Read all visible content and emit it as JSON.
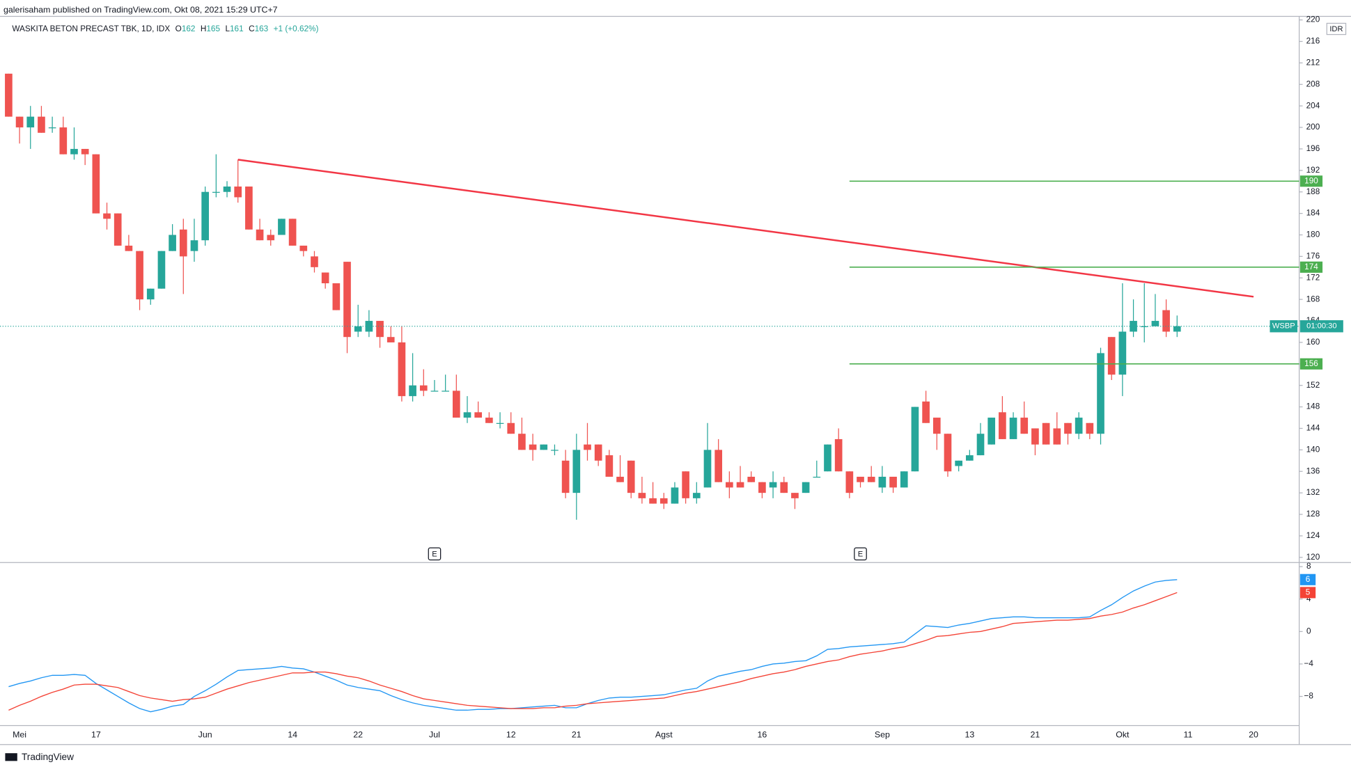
{
  "header": {
    "published": "galerisaham published on TradingView.com, Okt 08, 2021 15:29 UTC+7"
  },
  "footer": {
    "brand": "TradingView"
  },
  "chart_data": [
    {
      "type": "candlestick",
      "title": "WASKITA BETON PRECAST TBK, 1D, IDX",
      "ohlc": [
        {
          "key": "O",
          "value": 162
        },
        {
          "key": "H",
          "value": 165
        },
        {
          "key": "L",
          "value": 161
        },
        {
          "key": "C",
          "value": 163
        }
      ],
      "change": "+1 (+0.62%)",
      "currency": "IDR",
      "categories": [
        null,
        "Mei",
        null,
        null,
        null,
        null,
        null,
        null,
        "17",
        null,
        null,
        null,
        null,
        null,
        null,
        null,
        null,
        null,
        "Jun",
        null,
        null,
        null,
        null,
        null,
        null,
        null,
        "14",
        null,
        null,
        null,
        null,
        null,
        "22",
        null,
        null,
        null,
        null,
        null,
        null,
        "Jul",
        null,
        null,
        null,
        null,
        null,
        null,
        "12",
        null,
        null,
        null,
        null,
        null,
        "21",
        null,
        null,
        null,
        null,
        null,
        null,
        null,
        "Agst",
        null,
        null,
        null,
        null,
        null,
        null,
        null,
        null,
        "16",
        null,
        null,
        null,
        null,
        null,
        null,
        null,
        null,
        null,
        null,
        "Sep",
        null,
        null,
        null,
        null,
        null,
        null,
        null,
        "13",
        null,
        null,
        null,
        null,
        null,
        "21",
        null,
        null,
        null,
        null,
        null,
        null,
        null,
        "Okt",
        null,
        null,
        null,
        null,
        null,
        "11",
        null,
        null,
        null,
        null,
        null,
        "20",
        null,
        null,
        null,
        null
      ],
      "open": [
        210,
        202,
        200,
        202,
        200,
        200,
        195,
        196,
        195,
        184,
        184,
        178,
        177,
        168,
        170,
        177,
        181,
        177,
        179,
        188,
        188,
        189,
        189,
        181,
        180,
        180,
        183,
        178,
        176,
        173,
        171,
        175,
        162,
        162,
        164,
        161,
        160,
        150,
        152,
        151,
        151,
        151,
        146,
        147,
        146,
        145,
        145,
        143,
        141,
        140,
        140,
        138,
        132,
        141,
        141,
        139,
        135,
        138,
        132,
        131,
        131,
        130,
        136,
        131,
        133,
        140,
        134,
        134,
        135,
        134,
        133,
        134,
        132,
        132,
        135,
        136,
        142,
        136,
        135,
        135,
        133,
        135,
        133,
        136,
        149,
        146,
        143,
        137,
        138,
        139,
        141,
        147,
        142,
        146,
        144,
        145,
        144,
        145,
        143,
        145,
        143,
        161,
        154,
        162,
        163,
        163,
        166,
        162,
        null,
        null,
        null,
        null,
        null,
        null,
        null,
        null,
        null,
        null,
        null
      ],
      "high": [
        210,
        202,
        204,
        204,
        202,
        202,
        200,
        196,
        195,
        186,
        184,
        180,
        177,
        170,
        177,
        182,
        183,
        183,
        189,
        195,
        190,
        194,
        189,
        183,
        181,
        183,
        183,
        178,
        177,
        173,
        171,
        175,
        167,
        166,
        164,
        163,
        163,
        158,
        155,
        153,
        154,
        154,
        150,
        149,
        147,
        147,
        147,
        146,
        143,
        141,
        141,
        140,
        143,
        145,
        141,
        140,
        139,
        138,
        135,
        134,
        132,
        134,
        136,
        134,
        145,
        142,
        136,
        137,
        136,
        134,
        136,
        135,
        132,
        134,
        138,
        141,
        144,
        136,
        135,
        137,
        137,
        135,
        136,
        148,
        151,
        146,
        143,
        138,
        140,
        145,
        146,
        150,
        147,
        149,
        144,
        145,
        147,
        145,
        147,
        145,
        159,
        161,
        171,
        168,
        171,
        169,
        168,
        165,
        null,
        null,
        null,
        null,
        null,
        null,
        null,
        null,
        null,
        null,
        null
      ],
      "low": [
        202,
        197,
        196,
        199,
        199,
        195,
        194,
        193,
        184,
        181,
        178,
        177,
        166,
        167,
        170,
        177,
        169,
        175,
        178,
        187,
        187,
        186,
        181,
        179,
        178,
        180,
        178,
        176,
        173,
        170,
        166,
        158,
        161,
        161,
        159,
        160,
        149,
        149,
        150,
        151,
        151,
        146,
        145,
        146,
        145,
        144,
        143,
        140,
        138,
        140,
        139,
        131,
        127,
        138,
        137,
        135,
        134,
        131,
        130,
        130,
        129,
        130,
        130,
        130,
        133,
        134,
        131,
        133,
        134,
        131,
        131,
        132,
        129,
        132,
        135,
        136,
        136,
        131,
        133,
        134,
        132,
        132,
        133,
        136,
        145,
        140,
        135,
        136,
        138,
        139,
        141,
        142,
        142,
        143,
        139,
        141,
        141,
        141,
        142,
        142,
        141,
        153,
        150,
        161,
        160,
        163,
        161,
        161,
        null,
        null,
        null,
        null,
        null,
        null,
        null,
        null,
        null,
        null,
        null
      ],
      "close": [
        202,
        200,
        202,
        199,
        200,
        195,
        196,
        195,
        184,
        183,
        178,
        177,
        168,
        170,
        177,
        180,
        176,
        179,
        188,
        188,
        189,
        187,
        181,
        179,
        179,
        183,
        178,
        177,
        174,
        171,
        166,
        161,
        163,
        164,
        161,
        160,
        150,
        152,
        151,
        151,
        151,
        146,
        147,
        146,
        145,
        145,
        143,
        140,
        140,
        141,
        140,
        132,
        140,
        140,
        138,
        135,
        134,
        132,
        131,
        130,
        130,
        133,
        131,
        132,
        140,
        134,
        133,
        133,
        134,
        132,
        134,
        132,
        131,
        134,
        135,
        141,
        136,
        132,
        134,
        134,
        135,
        133,
        136,
        148,
        145,
        143,
        136,
        138,
        139,
        143,
        146,
        142,
        146,
        143,
        141,
        141,
        141,
        143,
        146,
        143,
        158,
        154,
        162,
        164,
        163,
        164,
        162,
        163,
        null,
        null,
        null,
        null,
        null,
        null,
        null,
        null,
        null,
        null,
        null
      ],
      "color_up": "#26a69a",
      "color_down": "#ef5350",
      "ylim": [
        119.2,
        221.3
      ],
      "yticks": [
        120,
        124,
        128,
        132,
        136,
        140,
        144,
        148,
        152,
        156,
        160,
        164,
        168,
        172,
        176,
        180,
        184,
        188,
        192,
        196,
        200,
        204,
        208,
        212,
        216,
        220
      ],
      "grid": false,
      "levels": [
        190,
        174,
        156
      ],
      "level_color": "#4caf50",
      "trend_line": {
        "values": [
          194,
          168.5
        ],
        "color": "#f23645"
      },
      "last_price": {
        "value": 163,
        "symbol": "WSBP",
        "countdown": "01:00:30",
        "color": "#26a69a"
      },
      "events": [
        "E",
        "E"
      ]
    },
    {
      "type": "line",
      "series": [
        {
          "color": "#2196f3",
          "last_label": 6,
          "values": [
            -6.8,
            -6.4,
            -6.1,
            -5.7,
            -5.4,
            -5.4,
            -5.3,
            -5.4,
            -6.4,
            -7.2,
            -8.0,
            -8.8,
            -9.5,
            -9.9,
            -9.6,
            -9.2,
            -9.0,
            -8.0,
            -7.3,
            -6.5,
            -5.6,
            -4.8,
            -4.7,
            -4.6,
            -4.5,
            -4.3,
            -4.5,
            -4.6,
            -5.0,
            -5.5,
            -6.0,
            -6.6,
            -6.9,
            -7.1,
            -7.3,
            -7.9,
            -8.4,
            -8.8,
            -9.1,
            -9.3,
            -9.5,
            -9.7,
            -9.7,
            -9.6,
            -9.6,
            -9.5,
            -9.5,
            -9.4,
            -9.3,
            -9.2,
            -9.1,
            -9.4,
            -9.4,
            -8.9,
            -8.5,
            -8.2,
            -8.1,
            -8.1,
            -8.0,
            -7.9,
            -7.8,
            -7.5,
            -7.2,
            -7.0,
            -6.1,
            -5.5,
            -5.2,
            -4.9,
            -4.7,
            -4.3,
            -4.0,
            -3.9,
            -3.7,
            -3.6,
            -3.0,
            -2.2,
            -2.1,
            -1.9,
            -1.8,
            -1.7,
            -1.6,
            -1.5,
            -1.3,
            -0.3,
            0.7,
            0.6,
            0.5,
            0.8,
            1.0,
            1.3,
            1.6,
            1.7,
            1.8,
            1.8,
            1.7,
            1.7,
            1.7,
            1.7,
            1.7,
            1.8,
            2.6,
            3.3,
            4.2,
            5.0,
            5.6,
            6.1,
            6.3,
            6.4,
            null,
            null,
            null,
            null,
            null,
            null,
            null,
            null,
            null,
            null,
            null
          ]
        },
        {
          "color": "#f44336",
          "last_label": 5,
          "values": [
            -9.7,
            -9.1,
            -8.6,
            -8.0,
            -7.5,
            -7.1,
            -6.6,
            -6.5,
            -6.5,
            -6.7,
            -6.9,
            -7.4,
            -7.9,
            -8.2,
            -8.4,
            -8.6,
            -8.4,
            -8.3,
            -8.1,
            -7.6,
            -7.1,
            -6.7,
            -6.3,
            -6.0,
            -5.7,
            -5.4,
            -5.1,
            -5.1,
            -5.0,
            -5.0,
            -5.2,
            -5.5,
            -5.7,
            -6.1,
            -6.6,
            -7.0,
            -7.4,
            -7.9,
            -8.3,
            -8.5,
            -8.7,
            -8.9,
            -9.1,
            -9.2,
            -9.3,
            -9.4,
            -9.5,
            -9.5,
            -9.5,
            -9.4,
            -9.4,
            -9.2,
            -9.1,
            -8.9,
            -8.8,
            -8.7,
            -8.6,
            -8.5,
            -8.4,
            -8.3,
            -8.2,
            -7.9,
            -7.6,
            -7.4,
            -7.1,
            -6.8,
            -6.5,
            -6.2,
            -5.8,
            -5.5,
            -5.2,
            -5.0,
            -4.7,
            -4.3,
            -4.0,
            -3.7,
            -3.5,
            -3.1,
            -2.8,
            -2.6,
            -2.4,
            -2.1,
            -1.9,
            -1.5,
            -1.1,
            -0.6,
            -0.5,
            -0.3,
            -0.1,
            0.0,
            0.3,
            0.6,
            1.0,
            1.1,
            1.2,
            1.3,
            1.4,
            1.4,
            1.5,
            1.6,
            1.9,
            2.1,
            2.4,
            2.9,
            3.3,
            3.8,
            4.3,
            4.8,
            null,
            null,
            null,
            null,
            null,
            null,
            null,
            null,
            null,
            null,
            null
          ]
        }
      ],
      "ylim": [
        -11.6,
        8.4
      ],
      "yticks": [
        8,
        4,
        0,
        {
          "value": -4,
          "label": "−4"
        },
        {
          "value": -8,
          "label": "−8"
        }
      ]
    }
  ]
}
